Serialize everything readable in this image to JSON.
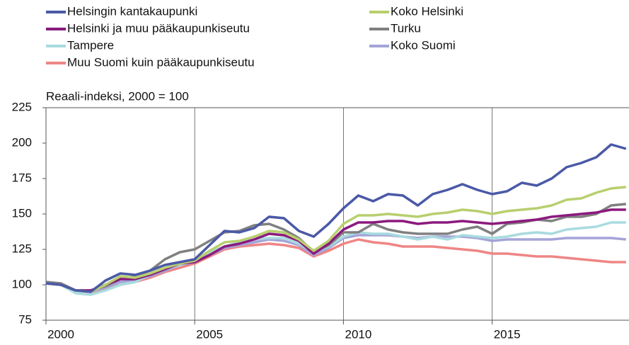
{
  "chart_data": {
    "type": "line",
    "subtitle": "Reaali-indeksi, 2000 = 100",
    "x": [
      2000,
      2000.5,
      2001,
      2001.5,
      2002,
      2002.5,
      2003,
      2003.5,
      2004,
      2004.5,
      2005,
      2005.5,
      2006,
      2006.5,
      2007,
      2007.5,
      2008,
      2008.5,
      2009,
      2009.5,
      2010,
      2010.5,
      2011,
      2011.5,
      2012,
      2012.5,
      2013,
      2013.5,
      2014,
      2014.5,
      2015,
      2015.5,
      2016,
      2016.5,
      2017,
      2017.5,
      2018,
      2018.5,
      2019,
      2019.5
    ],
    "series": [
      {
        "name": "Helsingin kantakaupunki",
        "color": "#4a59a7",
        "values": [
          101,
          100,
          96,
          95,
          103,
          108,
          107,
          110,
          114,
          116,
          118,
          128,
          138,
          137,
          140,
          148,
          147,
          138,
          134,
          143,
          154,
          163,
          159,
          164,
          163,
          156,
          164,
          167,
          171,
          167,
          164,
          166,
          172,
          170,
          175,
          183,
          186,
          190,
          199,
          196
        ]
      },
      {
        "name": "Koko Helsinki",
        "color": "#b8cf6e",
        "values": [
          101,
          100,
          96,
          95,
          100,
          106,
          105,
          108,
          112,
          115,
          117,
          124,
          130,
          131,
          134,
          138,
          137,
          132,
          124,
          131,
          143,
          149,
          149,
          150,
          149,
          148,
          150,
          151,
          153,
          152,
          150,
          152,
          153,
          154,
          156,
          160,
          161,
          165,
          168,
          169
        ]
      },
      {
        "name": "Helsinki ja muu pääkaupunkiseutu",
        "color": "#8b1a7e",
        "values": [
          101,
          100,
          96,
          96,
          100,
          104,
          104,
          107,
          111,
          115,
          116,
          121,
          127,
          129,
          132,
          136,
          135,
          131,
          122,
          129,
          139,
          144,
          144,
          145,
          145,
          143,
          144,
          144,
          145,
          144,
          143,
          144,
          145,
          146,
          148,
          149,
          150,
          151,
          153,
          153
        ]
      },
      {
        "name": "Turku",
        "color": "#808080",
        "values": [
          102,
          101,
          96,
          96,
          99,
          104,
          106,
          110,
          118,
          123,
          125,
          131,
          137,
          138,
          142,
          143,
          139,
          133,
          123,
          128,
          137,
          137,
          143,
          139,
          137,
          136,
          136,
          136,
          139,
          141,
          136,
          143,
          144,
          146,
          145,
          148,
          148,
          150,
          156,
          157
        ]
      },
      {
        "name": "Tampere",
        "color": "#a8dbdf",
        "values": [
          102,
          100,
          94,
          93,
          96,
          100,
          102,
          107,
          111,
          114,
          117,
          123,
          127,
          130,
          132,
          133,
          133,
          129,
          123,
          127,
          134,
          137,
          136,
          136,
          134,
          132,
          134,
          132,
          135,
          134,
          133,
          134,
          136,
          137,
          136,
          139,
          140,
          141,
          144,
          144
        ]
      },
      {
        "name": "Koko Suomi",
        "color": "#a4a4d8",
        "values": [
          101,
          100,
          96,
          95,
          98,
          102,
          103,
          106,
          110,
          114,
          116,
          121,
          126,
          128,
          130,
          132,
          131,
          128,
          121,
          126,
          133,
          135,
          135,
          135,
          134,
          133,
          134,
          134,
          134,
          133,
          131,
          132,
          132,
          132,
          132,
          133,
          133,
          133,
          133,
          132
        ]
      },
      {
        "name": "Muu Suomi kuin pääkaupunkiseutu",
        "color": "#ef8585",
        "values": [
          101,
          100,
          96,
          95,
          97,
          100,
          102,
          105,
          109,
          112,
          115,
          120,
          125,
          127,
          128,
          129,
          128,
          126,
          120,
          124,
          129,
          132,
          130,
          129,
          127,
          127,
          127,
          126,
          125,
          124,
          122,
          122,
          121,
          120,
          120,
          119,
          118,
          117,
          116,
          116
        ]
      }
    ],
    "xlim": [
      2000,
      2019.6
    ],
    "xticks": [
      2000,
      2005,
      2010,
      2015
    ],
    "ylim": [
      75,
      225
    ],
    "yticks": [
      75,
      100,
      125,
      150,
      175,
      200,
      225
    ],
    "grid": "x"
  }
}
